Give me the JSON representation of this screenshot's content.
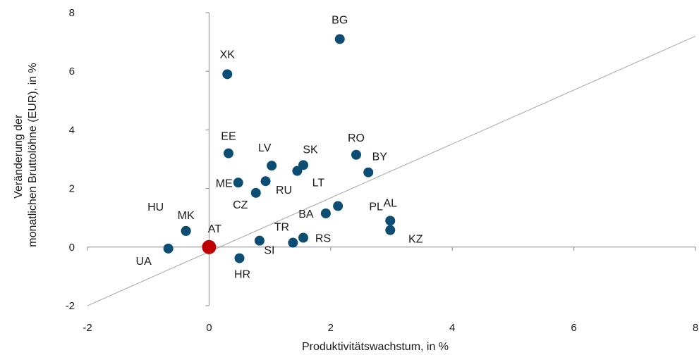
{
  "chart_data": {
    "type": "scatter",
    "xlabel": "Produktivitätswachstum, in %",
    "ylabel_lines": [
      "Veränderung der",
      "monatlichen Bruttolöhne (EUR), in %"
    ],
    "xlim": [
      -2,
      8
    ],
    "ylim": [
      -2,
      8
    ],
    "xticks": [
      -2,
      0,
      2,
      4,
      6,
      8
    ],
    "yticks": [
      -2,
      0,
      2,
      4,
      6,
      8
    ],
    "grid": false,
    "diagonal_line": {
      "from": [
        -2,
        -2
      ],
      "to": [
        8,
        7.2
      ]
    },
    "colors": {
      "point": "#0b4d73",
      "highlight": "#c00000",
      "axis": "#888888",
      "diagonal": "#a6a6a6"
    },
    "points": [
      {
        "label": "BG",
        "x": 2.15,
        "y": 7.1
      },
      {
        "label": "XK",
        "x": 0.3,
        "y": 5.9
      },
      {
        "label": "EE",
        "x": 0.32,
        "y": 3.2
      },
      {
        "label": "LV",
        "x": 1.03,
        "y": 2.78
      },
      {
        "label": "SK",
        "x": 1.55,
        "y": 2.8
      },
      {
        "label": "LT",
        "x": 1.45,
        "y": 2.6
      },
      {
        "label": "RO",
        "x": 2.42,
        "y": 3.15
      },
      {
        "label": "BY",
        "x": 2.62,
        "y": 2.55
      },
      {
        "label": "ME",
        "x": 0.48,
        "y": 2.2
      },
      {
        "label": "RU",
        "x": 0.93,
        "y": 2.25
      },
      {
        "label": "CZ",
        "x": 0.77,
        "y": 1.85
      },
      {
        "label": "BA",
        "x": 1.92,
        "y": 1.15
      },
      {
        "label": "PL",
        "x": 2.12,
        "y": 1.4
      },
      {
        "label": "AL",
        "x": 2.98,
        "y": 0.9
      },
      {
        "label": "KZ",
        "x": 2.98,
        "y": 0.58
      },
      {
        "label": "HU",
        "x": -0.38,
        "y": 0.55
      },
      {
        "label": "MK",
        "x": -0.38,
        "y": 0.55
      },
      {
        "label": "AT",
        "x": 0.0,
        "y": 0.0,
        "highlight": true
      },
      {
        "label": "TR",
        "x": 1.38,
        "y": 0.15
      },
      {
        "label": "RS",
        "x": 1.55,
        "y": 0.32
      },
      {
        "label": "SI",
        "x": 0.83,
        "y": 0.22
      },
      {
        "label": "HR",
        "x": 0.5,
        "y": -0.38
      },
      {
        "label": "UA",
        "x": -0.67,
        "y": -0.05
      }
    ]
  }
}
